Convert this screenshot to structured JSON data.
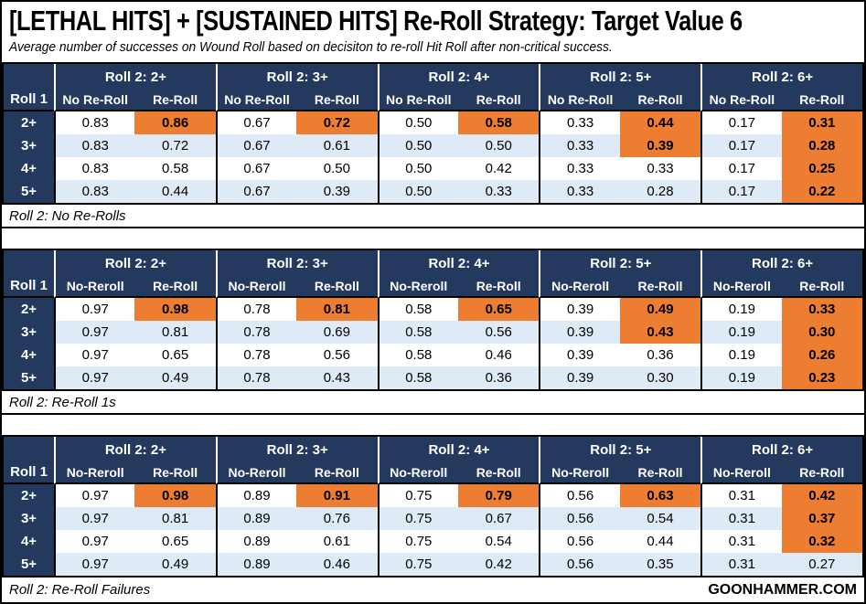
{
  "page": {
    "title": "[LETHAL HITS] + [SUSTAINED HITS] Re-Roll Strategy: Target Value 6",
    "subtitle": "Average number of successes on Wound Roll based on decisiton to re-roll Hit Roll after non-critical success.",
    "footer": "GOONHAMMER.COM"
  },
  "colors": {
    "header_navy": "#24395E",
    "highlight_orange": "#ED7D31",
    "stripe_blue": "#DEEBF7",
    "border_black": "#000000"
  },
  "chart_data": {
    "type": "table",
    "title": "[LETHAL HITS] + [SUSTAINED HITS] Re-Roll Strategy: Target Value 6",
    "subtitle": "Average number of successes on Wound Roll based on decisiton to re-roll Hit Roll after non-critical success.",
    "highlight_meaning": "orange cell = re-roll value highlighted",
    "tables": [
      {
        "caption": "Roll 2: No Re-Rolls",
        "corner_label": "Roll 1",
        "sub_headers": [
          "No Re-Roll",
          "Re-Roll"
        ],
        "row_labels": [
          "2+",
          "3+",
          "4+",
          "5+"
        ],
        "groups": [
          {
            "title": "Roll 2: 2+",
            "no_reroll": [
              "0.83",
              "0.83",
              "0.83",
              "0.83"
            ],
            "reroll": [
              "0.86",
              "0.72",
              "0.58",
              "0.44"
            ],
            "reroll_highlight": [
              true,
              false,
              false,
              false
            ]
          },
          {
            "title": "Roll 2: 3+",
            "no_reroll": [
              "0.67",
              "0.67",
              "0.67",
              "0.67"
            ],
            "reroll": [
              "0.72",
              "0.61",
              "0.50",
              "0.39"
            ],
            "reroll_highlight": [
              true,
              false,
              false,
              false
            ]
          },
          {
            "title": "Roll 2: 4+",
            "no_reroll": [
              "0.50",
              "0.50",
              "0.50",
              "0.50"
            ],
            "reroll": [
              "0.58",
              "0.50",
              "0.42",
              "0.33"
            ],
            "reroll_highlight": [
              true,
              false,
              false,
              false
            ]
          },
          {
            "title": "Roll 2: 5+",
            "no_reroll": [
              "0.33",
              "0.33",
              "0.33",
              "0.33"
            ],
            "reroll": [
              "0.44",
              "0.39",
              "0.33",
              "0.28"
            ],
            "reroll_highlight": [
              true,
              true,
              false,
              false
            ]
          },
          {
            "title": "Roll 2: 6+",
            "no_reroll": [
              "0.17",
              "0.17",
              "0.17",
              "0.17"
            ],
            "reroll": [
              "0.31",
              "0.28",
              "0.25",
              "0.22"
            ],
            "reroll_highlight": [
              true,
              true,
              true,
              true
            ]
          }
        ]
      },
      {
        "caption": "Roll 2: Re-Roll 1s",
        "corner_label": "Roll 1",
        "sub_headers": [
          "No-Reroll",
          "Re-Roll"
        ],
        "row_labels": [
          "2+",
          "3+",
          "4+",
          "5+"
        ],
        "groups": [
          {
            "title": "Roll 2: 2+",
            "no_reroll": [
              "0.97",
              "0.97",
              "0.97",
              "0.97"
            ],
            "reroll": [
              "0.98",
              "0.81",
              "0.65",
              "0.49"
            ],
            "reroll_highlight": [
              true,
              false,
              false,
              false
            ]
          },
          {
            "title": "Roll 2: 3+",
            "no_reroll": [
              "0.78",
              "0.78",
              "0.78",
              "0.78"
            ],
            "reroll": [
              "0.81",
              "0.69",
              "0.56",
              "0.43"
            ],
            "reroll_highlight": [
              true,
              false,
              false,
              false
            ]
          },
          {
            "title": "Roll 2: 4+",
            "no_reroll": [
              "0.58",
              "0.58",
              "0.58",
              "0.58"
            ],
            "reroll": [
              "0.65",
              "0.56",
              "0.46",
              "0.36"
            ],
            "reroll_highlight": [
              true,
              false,
              false,
              false
            ]
          },
          {
            "title": "Roll 2: 5+",
            "no_reroll": [
              "0.39",
              "0.39",
              "0.39",
              "0.39"
            ],
            "reroll": [
              "0.49",
              "0.43",
              "0.36",
              "0.30"
            ],
            "reroll_highlight": [
              true,
              true,
              false,
              false
            ]
          },
          {
            "title": "Roll 2: 6+",
            "no_reroll": [
              "0.19",
              "0.19",
              "0.19",
              "0.19"
            ],
            "reroll": [
              "0.33",
              "0.30",
              "0.26",
              "0.23"
            ],
            "reroll_highlight": [
              true,
              true,
              true,
              true
            ]
          }
        ]
      },
      {
        "caption": "Roll 2: Re-Roll Failures",
        "corner_label": "Roll 1",
        "sub_headers": [
          "No-Reroll",
          "Re-Roll"
        ],
        "row_labels": [
          "2+",
          "3+",
          "4+",
          "5+"
        ],
        "groups": [
          {
            "title": "Roll 2: 2+",
            "no_reroll": [
              "0.97",
              "0.97",
              "0.97",
              "0.97"
            ],
            "reroll": [
              "0.98",
              "0.81",
              "0.65",
              "0.49"
            ],
            "reroll_highlight": [
              true,
              false,
              false,
              false
            ]
          },
          {
            "title": "Roll 2: 3+",
            "no_reroll": [
              "0.89",
              "0.89",
              "0.89",
              "0.89"
            ],
            "reroll": [
              "0.91",
              "0.76",
              "0.61",
              "0.46"
            ],
            "reroll_highlight": [
              true,
              false,
              false,
              false
            ]
          },
          {
            "title": "Roll 2: 4+",
            "no_reroll": [
              "0.75",
              "0.75",
              "0.75",
              "0.75"
            ],
            "reroll": [
              "0.79",
              "0.67",
              "0.54",
              "0.42"
            ],
            "reroll_highlight": [
              true,
              false,
              false,
              false
            ]
          },
          {
            "title": "Roll 2: 5+",
            "no_reroll": [
              "0.56",
              "0.56",
              "0.56",
              "0.56"
            ],
            "reroll": [
              "0.63",
              "0.54",
              "0.44",
              "0.35"
            ],
            "reroll_highlight": [
              true,
              false,
              false,
              false
            ]
          },
          {
            "title": "Roll 2: 6+",
            "no_reroll": [
              "0.31",
              "0.31",
              "0.31",
              "0.31"
            ],
            "reroll": [
              "0.42",
              "0.37",
              "0.32",
              "0.27"
            ],
            "reroll_highlight": [
              true,
              true,
              true,
              false
            ]
          }
        ]
      }
    ]
  }
}
